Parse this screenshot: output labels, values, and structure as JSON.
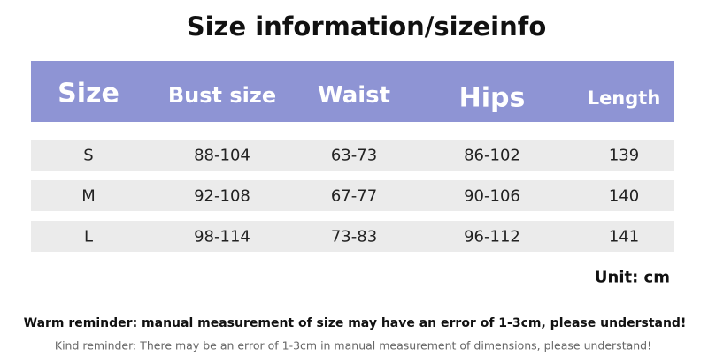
{
  "header": {
    "title": "Size information/sizeinfo"
  },
  "table": {
    "columns": [
      "Size",
      "Bust size",
      "Waist",
      "Hips",
      "Length"
    ],
    "rows": [
      [
        "S",
        "88-104",
        "63-73",
        "86-102",
        "139"
      ],
      [
        "M",
        "92-108",
        "67-77",
        "90-106",
        "140"
      ],
      [
        "L",
        "98-114",
        "73-83",
        "96-112",
        "141"
      ]
    ]
  },
  "unit": "Unit: cm",
  "warm_reminder": "Warm reminder: manual measurement of size may have an error of 1-3cm, please understand!",
  "kind_reminder": "Kind reminder: There may be an error of 1-3cm in manual measurement of dimensions, please understand!"
}
